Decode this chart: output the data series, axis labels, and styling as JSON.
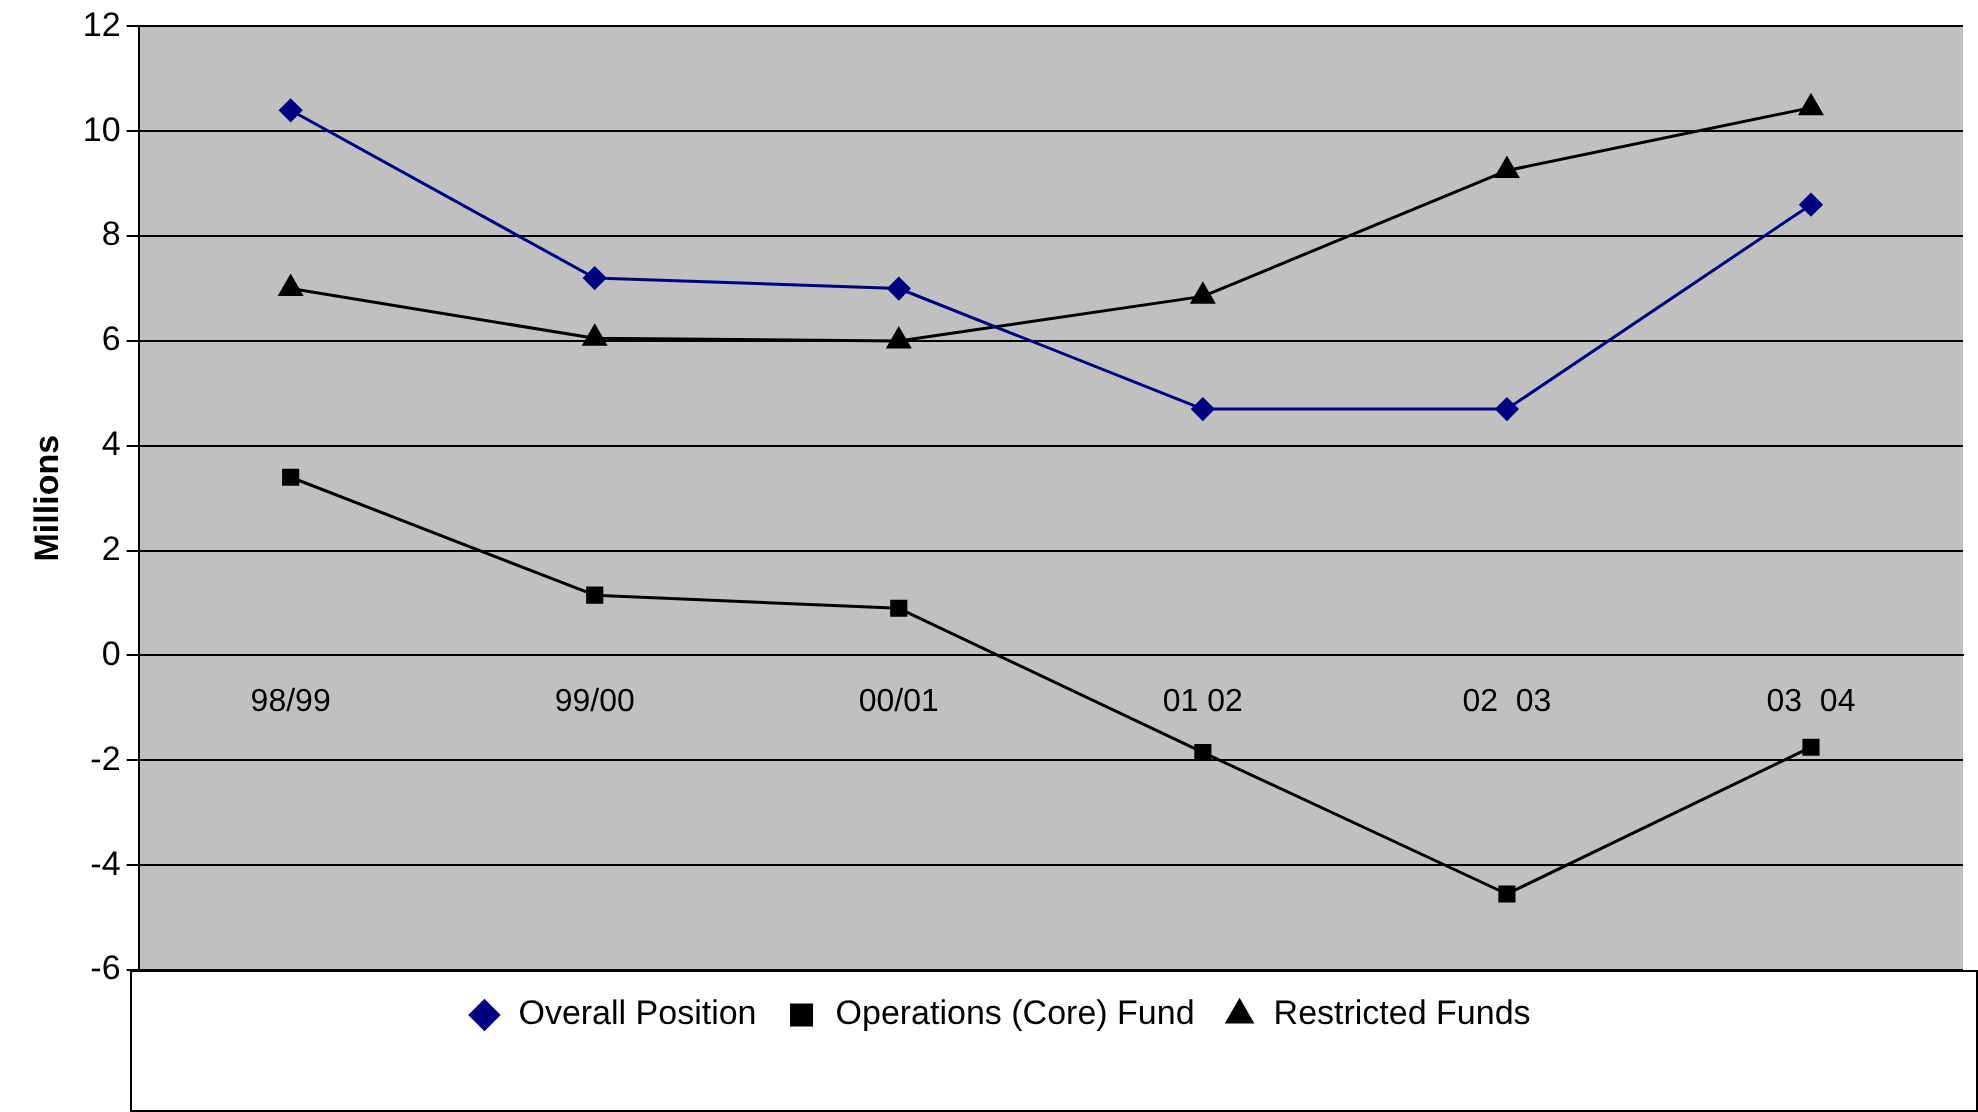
{
  "chart_data": {
    "type": "line",
    "ylabel": "Millions",
    "categories": [
      "98/99",
      "99/00",
      "00/01",
      "01 02",
      "02  03",
      "03  04"
    ],
    "series": [
      {
        "name": "Overall Position",
        "color": "#000080",
        "marker": "diamond",
        "values": [
          10.4,
          7.2,
          7.0,
          4.7,
          4.7,
          8.6
        ]
      },
      {
        "name": "Operations (Core) Fund",
        "color": "#000000",
        "marker": "square",
        "values": [
          3.4,
          1.15,
          0.9,
          -1.85,
          -4.55,
          -1.75
        ]
      },
      {
        "name": "Restricted Funds",
        "color": "#000000",
        "marker": "triangle",
        "values": [
          7.0,
          6.05,
          6.0,
          6.85,
          9.25,
          10.45
        ]
      }
    ],
    "ylim": [
      -6,
      12
    ],
    "yticks": [
      -6,
      -4,
      -2,
      0,
      2,
      4,
      6,
      8,
      10,
      12
    ],
    "grid": "y",
    "legend": "bottom",
    "line_style": "solid"
  }
}
